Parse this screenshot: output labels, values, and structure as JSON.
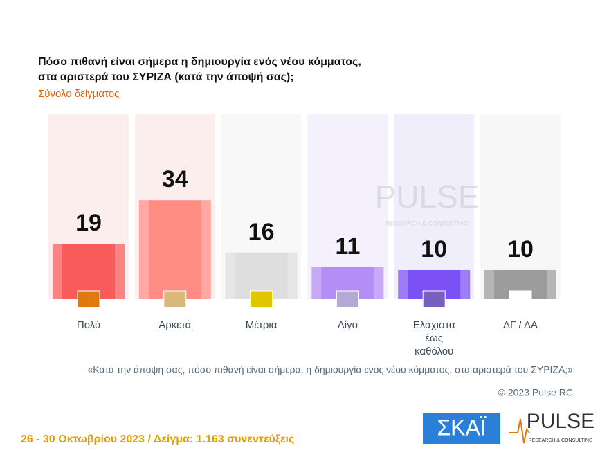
{
  "chart_data": {
    "type": "bar",
    "title": [
      "Πόσο πιθανή είναι σήμερα η δημιουργία ενός νέου κόμματος,",
      "στα αριστερά του ΣΥΡΙΖΑ (κατά την άποψή σας);"
    ],
    "subtitle": "Σύνολο δείγματος",
    "categories": [
      "Πολύ",
      "Αρκετά",
      "Μέτρια",
      "Λίγο",
      "Ελάχιστα έως καθόλου",
      "ΔΓ / ΔΑ"
    ],
    "values": [
      19,
      34,
      16,
      11,
      10,
      10
    ],
    "colors": [
      "#f95b5b",
      "#ff8c83",
      "#dedede",
      "#b38ef6",
      "#7b50f4",
      "#9c9c9c"
    ],
    "column_colors": [
      "#fdeeee",
      "#fdeeee",
      "#f8f8f8",
      "#f4f1fd",
      "#f1eefc",
      "#f7f7f7"
    ],
    "icon_colors": [
      "#e07a10",
      "#d9b87a",
      "#e0c800",
      "#b7a9d6",
      "#7860c0",
      "#ffffff"
    ]
  },
  "footnote": "«Κατά την άποψή σας, πόσο πιθανή είναι σήμερα, η δημιουργία ενός νέου κόμματος, στα αριστερά του ΣΥΡΙΖΑ;»",
  "copyright": "© 2023 Pulse RC",
  "footer": "26 - 30  Οκτωβρίου  2023  /  Δείγμα:  1.163 συνεντεύξεις",
  "logos": {
    "skai": "ΣΚΑΪ",
    "pulse": "PULSE",
    "pulse_sub": "RESEARCH & CONSULTING"
  }
}
